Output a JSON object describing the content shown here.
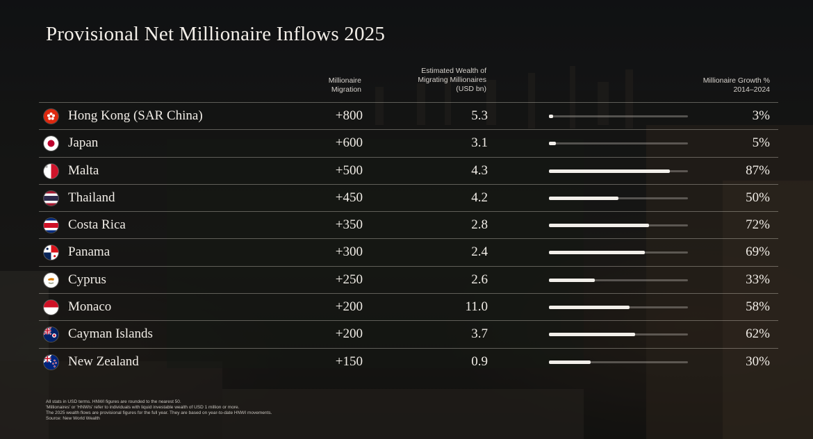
{
  "title": "Provisional Net Millionaire Inflows 2025",
  "headers": {
    "migration": [
      "Millionaire",
      "Migration"
    ],
    "wealth": [
      "Estimated Wealth of",
      "Migrating Millionaires",
      "(USD bn)"
    ],
    "growth": [
      "Millionaire Growth %",
      "2014–2024"
    ]
  },
  "rows": [
    {
      "country": "Hong Kong (SAR China)",
      "flag_icon": "hong-kong-flag-icon",
      "migration": "+800",
      "wealth": "5.3",
      "growth": "3%"
    },
    {
      "country": "Japan",
      "flag_icon": "japan-flag-icon",
      "migration": "+600",
      "wealth": "3.1",
      "growth": "5%"
    },
    {
      "country": "Malta",
      "flag_icon": "malta-flag-icon",
      "migration": "+500",
      "wealth": "4.3",
      "growth": "87%"
    },
    {
      "country": "Thailand",
      "flag_icon": "thailand-flag-icon",
      "migration": "+450",
      "wealth": "4.2",
      "growth": "50%"
    },
    {
      "country": "Costa Rica",
      "flag_icon": "costa-rica-flag-icon",
      "migration": "+350",
      "wealth": "2.8",
      "growth": "72%"
    },
    {
      "country": "Panama",
      "flag_icon": "panama-flag-icon",
      "migration": "+300",
      "wealth": "2.4",
      "growth": "69%"
    },
    {
      "country": "Cyprus",
      "flag_icon": "cyprus-flag-icon",
      "migration": "+250",
      "wealth": "2.6",
      "growth": "33%"
    },
    {
      "country": "Monaco",
      "flag_icon": "monaco-flag-icon",
      "migration": "+200",
      "wealth": "11.0",
      "growth": "58%"
    },
    {
      "country": "Cayman Islands",
      "flag_icon": "cayman-islands-flag-icon",
      "migration": "+200",
      "wealth": "3.7",
      "growth": "62%"
    },
    {
      "country": "New Zealand",
      "flag_icon": "new-zealand-flag-icon",
      "migration": "+150",
      "wealth": "0.9",
      "growth": "30%"
    }
  ],
  "footnotes": [
    "All stats in USD terms. HNWI figures are rounded to the nearest 50.",
    "'Millionaires' or 'HNWIs' refer to individuals with liquid investable wealth of USD 1 million or more.",
    "The 2025 wealth flows are provisional figures for the full year. They are based on year-to-date HNWI movements.",
    "Source: New World Wealth"
  ],
  "chart_data": {
    "type": "table",
    "title": "Provisional Net Millionaire Inflows 2025",
    "columns": [
      "Country",
      "Millionaire Migration",
      "Estimated Wealth of Migrating Millionaires (USD bn)",
      "Millionaire Growth % 2014–2024"
    ],
    "categories": [
      "Hong Kong (SAR China)",
      "Japan",
      "Malta",
      "Thailand",
      "Costa Rica",
      "Panama",
      "Cyprus",
      "Monaco",
      "Cayman Islands",
      "New Zealand"
    ],
    "series": [
      {
        "name": "Millionaire Migration",
        "values": [
          800,
          600,
          500,
          450,
          350,
          300,
          250,
          200,
          200,
          150
        ]
      },
      {
        "name": "Estimated Wealth of Migrating Millionaires (USD bn)",
        "values": [
          5.3,
          3.1,
          4.3,
          4.2,
          2.8,
          2.4,
          2.6,
          11.0,
          3.7,
          0.9
        ]
      },
      {
        "name": "Millionaire Growth % 2014–2024",
        "values": [
          3,
          5,
          87,
          50,
          72,
          69,
          33,
          58,
          62,
          30
        ]
      }
    ],
    "growth_bar_max": 100,
    "colors": {
      "bar_fill": "#f2efea",
      "bar_track": "#8c8884"
    }
  }
}
